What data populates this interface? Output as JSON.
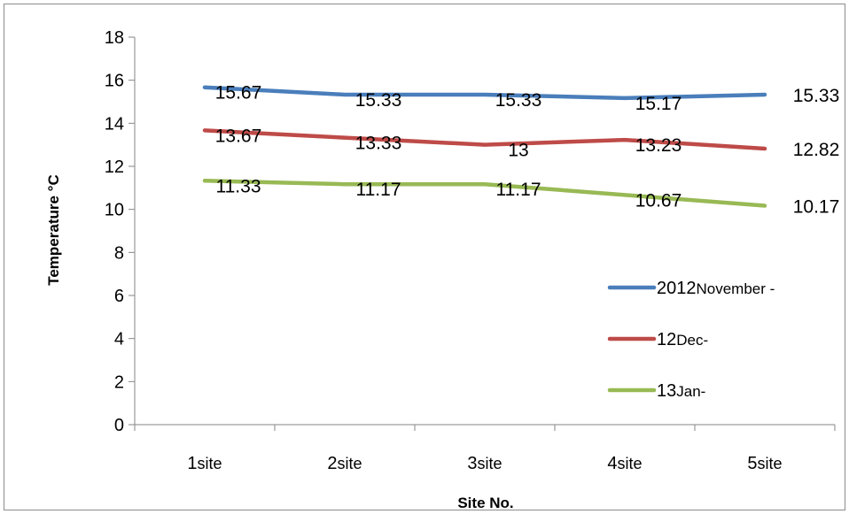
{
  "chart_data": {
    "type": "line",
    "title": "",
    "xlabel": "Site No.",
    "ylabel": "Temperature °C",
    "ylim": [
      0,
      18
    ],
    "yticks": [
      0,
      2,
      4,
      6,
      8,
      10,
      12,
      14,
      16,
      18
    ],
    "grid": false,
    "legend_position": "right",
    "categories": [
      {
        "num": "1",
        "unit": "site"
      },
      {
        "num": "2",
        "unit": "site"
      },
      {
        "num": "3",
        "unit": "site"
      },
      {
        "num": "4",
        "unit": "site"
      },
      {
        "num": "5",
        "unit": "site"
      }
    ],
    "series": [
      {
        "legend_main": "2012",
        "legend_sub": "November -",
        "color": "#4a7ebb",
        "values": [
          15.67,
          15.33,
          15.33,
          15.17,
          15.33
        ],
        "labels": [
          "15.67",
          "15.33",
          "15.33",
          "15.17",
          "15.33"
        ]
      },
      {
        "legend_main": "12",
        "legend_sub": "Dec-",
        "color": "#be4b48",
        "values": [
          13.67,
          13.33,
          13,
          13.23,
          12.82
        ],
        "labels": [
          "13.67",
          "13.33",
          "13",
          "13.23",
          "12.82"
        ]
      },
      {
        "legend_main": "13",
        "legend_sub": "Jan-",
        "color": "#98b954",
        "values": [
          11.33,
          11.17,
          11.17,
          10.67,
          10.17
        ],
        "labels": [
          "11.33",
          "11.17",
          "11.17",
          "10.67",
          "10.17"
        ]
      }
    ]
  }
}
